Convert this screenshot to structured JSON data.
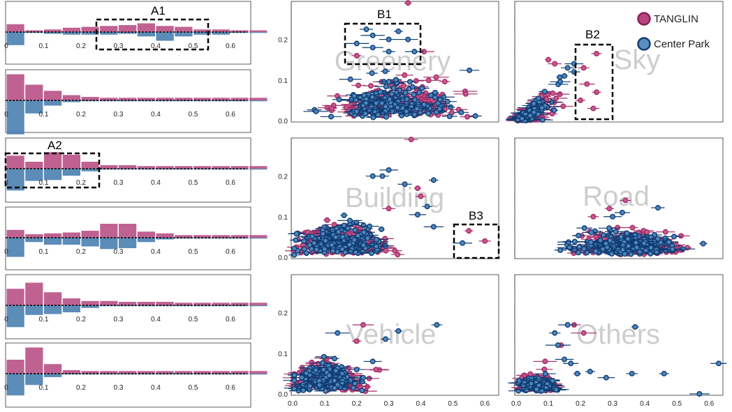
{
  "colors": {
    "tanglin": "#b5467e",
    "tanglin_stroke": "#a62b66",
    "center_park": "#4a7fb0",
    "center_park_stroke": "#0f3d73"
  },
  "legend": [
    {
      "name": "TANGLIN",
      "color": "#b5467e"
    },
    {
      "name": "Center Park",
      "color": "#4a7fb0"
    }
  ],
  "chart_data": [
    {
      "type": "bar",
      "panel": "histogram-1",
      "x_ticks": [
        "0",
        "0.1",
        "0.2",
        "0.3",
        "0.4",
        "0.5",
        "0.6"
      ],
      "xlim": [
        0,
        0.65
      ],
      "bin_width": 0.05,
      "series": [
        {
          "name": "TANGLIN",
          "values": [
            0.9,
            0.2,
            0.3,
            0.5,
            0.6,
            0.7,
            0.8,
            1.0,
            0.7,
            0.6,
            0.3,
            0.3,
            0.2,
            0.2
          ]
        },
        {
          "name": "Center Park",
          "values": [
            1.5,
            0.1,
            0.2,
            0.3,
            0.3,
            0.3,
            0.2,
            0.5,
            1.0,
            0.5,
            0.3,
            0.3,
            0.1,
            0.1
          ]
        }
      ],
      "annotation": "A1"
    },
    {
      "type": "bar",
      "panel": "histogram-2",
      "x_ticks": [
        "0",
        "0.1",
        "0.2",
        "0.3",
        "0.4",
        "0.5",
        "0.6"
      ],
      "xlim": [
        0,
        0.65
      ],
      "bin_width": 0.05,
      "series": [
        {
          "name": "TANGLIN",
          "values": [
            3.0,
            1.8,
            1.1,
            0.6,
            0.4,
            0.3,
            0.3,
            0.3,
            0.3,
            0.3,
            0.3,
            0.3,
            0.3,
            0.3
          ]
        },
        {
          "name": "Center Park",
          "values": [
            3.9,
            1.5,
            0.6,
            0.2,
            0.1,
            0.1,
            0.1,
            0.1,
            0.1,
            0.1,
            0.1,
            0.1,
            0.1,
            0.1
          ]
        }
      ]
    },
    {
      "type": "bar",
      "panel": "histogram-3",
      "x_ticks": [
        "0",
        "0.1",
        "0.2",
        "0.3",
        "0.4",
        "0.5",
        "0.6"
      ],
      "xlim": [
        0,
        0.65
      ],
      "bin_width": 0.05,
      "series": [
        {
          "name": "TANGLIN",
          "values": [
            1.5,
            0.8,
            1.9,
            1.6,
            0.8,
            0.4,
            0.4,
            0.3,
            0.3,
            0.3,
            0.3,
            0.3,
            0.3,
            0.3
          ]
        },
        {
          "name": "Center Park",
          "values": [
            2.5,
            1.4,
            1.3,
            0.8,
            0.3,
            0.1,
            0.1,
            0.1,
            0.1,
            0.1,
            0.1,
            0.1,
            0.1,
            0.1
          ]
        }
      ],
      "annotation": "A2"
    },
    {
      "type": "bar",
      "panel": "histogram-4",
      "x_ticks": [
        "0",
        "0.1",
        "0.2",
        "0.3",
        "0.4",
        "0.5",
        "0.6"
      ],
      "xlim": [
        0,
        0.65
      ],
      "bin_width": 0.05,
      "series": [
        {
          "name": "TANGLIN",
          "values": [
            0.9,
            0.4,
            0.5,
            0.6,
            0.8,
            1.6,
            1.6,
            0.7,
            0.5,
            0.3,
            0.3,
            0.3,
            0.3,
            0.3
          ]
        },
        {
          "name": "Center Park",
          "values": [
            2.2,
            0.5,
            0.8,
            0.8,
            1.0,
            1.3,
            1.2,
            0.5,
            0.2,
            0.1,
            0.1,
            0.1,
            0.1,
            0.1
          ]
        }
      ]
    },
    {
      "type": "bar",
      "panel": "histogram-5",
      "x_ticks": [
        "0",
        "0.1",
        "0.2",
        "0.3",
        "0.4",
        "0.5",
        "0.6"
      ],
      "xlim": [
        0,
        0.65
      ],
      "bin_width": 0.05,
      "series": [
        {
          "name": "TANGLIN",
          "values": [
            1.9,
            2.6,
            1.5,
            0.8,
            0.5,
            0.5,
            0.4,
            0.4,
            0.4,
            0.3,
            0.3,
            0.3,
            0.3,
            0.3
          ]
        },
        {
          "name": "Center Park",
          "values": [
            2.5,
            1.1,
            1.0,
            0.8,
            0.3,
            0.1,
            0.1,
            0.1,
            0.1,
            0.1,
            0.1,
            0.1,
            0.1,
            0.1
          ]
        }
      ]
    },
    {
      "type": "bar",
      "panel": "histogram-6",
      "x_ticks": [
        "0",
        "0.1",
        "0.2",
        "0.3",
        "0.4",
        "0.5",
        "0.6"
      ],
      "xlim": [
        0,
        0.65
      ],
      "bin_width": 0.05,
      "series": [
        {
          "name": "TANGLIN",
          "values": [
            1.6,
            3.0,
            1.1,
            0.4,
            0.3,
            0.3,
            0.3,
            0.3,
            0.3,
            0.3,
            0.3,
            0.3,
            0.3,
            0.3
          ]
        },
        {
          "name": "Center Park",
          "values": [
            2.5,
            1.3,
            0.4,
            0.1,
            0.1,
            0.1,
            0.1,
            0.1,
            0.1,
            0.1,
            0.1,
            0.1,
            0.1,
            0.1
          ]
        }
      ]
    },
    {
      "type": "scatter",
      "panel": "scatter-greenery",
      "label": "Greenery",
      "x_ticks": [],
      "y_ticks": [
        "0.0",
        "0.1",
        "0.2"
      ],
      "xlim": [
        0,
        0.63
      ],
      "ylim": [
        0,
        0.28
      ],
      "seed": 11,
      "count_tanglin": 180,
      "count_centerpark": 160,
      "cloud": {
        "cx": 0.33,
        "cy": 0.07,
        "sx": 0.09,
        "sy": 0.035
      },
      "extra_centerpark": [
        [
          0.23,
          0.225
        ],
        [
          0.33,
          0.22
        ],
        [
          0.25,
          0.21
        ],
        [
          0.3,
          0.2
        ],
        [
          0.36,
          0.2
        ],
        [
          0.2,
          0.19
        ],
        [
          0.25,
          0.18
        ],
        [
          0.3,
          0.17
        ],
        [
          0.38,
          0.17
        ]
      ],
      "extra_tanglin": [
        [
          0.36,
          0.29
        ],
        [
          0.41,
          0.17
        ],
        [
          0.2,
          0.16
        ]
      ],
      "annotation": "B1"
    },
    {
      "type": "scatter",
      "panel": "scatter-sky",
      "label": "Sky",
      "x_ticks": [],
      "y_ticks": [],
      "xlim": [
        0,
        0.63
      ],
      "ylim": [
        0,
        0.28
      ],
      "seed": 23,
      "count_tanglin": 110,
      "count_centerpark": 90,
      "cloud": {
        "cx": 0.09,
        "cy": 0.045,
        "sx": 0.045,
        "sy": 0.03
      },
      "wedge": true,
      "extra_centerpark": [
        [
          0.16,
          0.13
        ],
        [
          0.18,
          0.12
        ],
        [
          0.15,
          0.11
        ],
        [
          0.18,
          0.14
        ]
      ],
      "extra_tanglin": [
        [
          0.25,
          0.165
        ],
        [
          0.21,
          0.13
        ],
        [
          0.22,
          0.09
        ],
        [
          0.25,
          0.07
        ],
        [
          0.2,
          0.05
        ],
        [
          0.24,
          0.03
        ],
        [
          0.1,
          0.15
        ],
        [
          0.12,
          0.14
        ]
      ],
      "annotation": "B2"
    },
    {
      "type": "scatter",
      "panel": "scatter-building",
      "label": "Building",
      "x_ticks": [],
      "y_ticks": [
        "0.0",
        "0.1",
        "0.2"
      ],
      "xlim": [
        0,
        0.63
      ],
      "ylim": [
        0,
        0.28
      ],
      "seed": 37,
      "count_tanglin": 170,
      "count_centerpark": 170,
      "cloud": {
        "cx": 0.16,
        "cy": 0.05,
        "sx": 0.07,
        "sy": 0.03
      },
      "extra_centerpark": [
        [
          0.3,
          0.215
        ],
        [
          0.28,
          0.2
        ],
        [
          0.44,
          0.19
        ],
        [
          0.35,
          0.18
        ],
        [
          0.25,
          0.2
        ],
        [
          0.42,
          0.125
        ],
        [
          0.39,
          0.105
        ],
        [
          0.44,
          0.075
        ],
        [
          0.53,
          0.035
        ]
      ],
      "extra_tanglin": [
        [
          0.37,
          0.29
        ],
        [
          0.39,
          0.17
        ],
        [
          0.4,
          0.15
        ],
        [
          0.55,
          0.065
        ],
        [
          0.6,
          0.04
        ],
        [
          0.3,
          0.12
        ]
      ],
      "annotation": "B3"
    },
    {
      "type": "scatter",
      "panel": "scatter-road",
      "label": "Road",
      "x_ticks": [],
      "y_ticks": [],
      "xlim": [
        0,
        0.63
      ],
      "ylim": [
        0,
        0.28
      ],
      "seed": 51,
      "count_tanglin": 170,
      "count_centerpark": 190,
      "cloud": {
        "cx": 0.34,
        "cy": 0.045,
        "sx": 0.08,
        "sy": 0.025
      },
      "extra_centerpark": [
        [
          0.33,
          0.11
        ],
        [
          0.3,
          0.1
        ]
      ],
      "extra_tanglin": [
        [
          0.34,
          0.14
        ],
        [
          0.29,
          0.12
        ],
        [
          0.24,
          0.1
        ]
      ]
    },
    {
      "type": "scatter",
      "panel": "scatter-vehicle",
      "label": "Vehicle",
      "x_ticks": [
        "0.0",
        "0.1",
        "0.2",
        "0.3",
        "0.4",
        "0.5",
        "0.6"
      ],
      "y_ticks": [
        "0.0",
        "0.1",
        "0.2"
      ],
      "xlim": [
        0,
        0.63
      ],
      "ylim": [
        0,
        0.28
      ],
      "seed": 67,
      "count_tanglin": 150,
      "count_centerpark": 150,
      "cloud": {
        "cx": 0.1,
        "cy": 0.04,
        "sx": 0.05,
        "sy": 0.028
      },
      "extra_centerpark": [
        [
          0.45,
          0.17
        ],
        [
          0.33,
          0.155
        ],
        [
          0.29,
          0.135
        ],
        [
          0.14,
          0.15
        ],
        [
          0.25,
          0.08
        ],
        [
          0.2,
          0.06
        ],
        [
          0.22,
          0.04
        ]
      ],
      "extra_tanglin": [
        [
          0.22,
          0.17
        ],
        [
          0.26,
          0.06
        ],
        [
          0.2,
          0.13
        ]
      ]
    },
    {
      "type": "scatter",
      "panel": "scatter-others",
      "label": "Others",
      "x_ticks": [
        "0.0",
        "0.1",
        "0.2",
        "0.3",
        "0.4",
        "0.5",
        "0.6"
      ],
      "y_ticks": [],
      "xlim": [
        0,
        0.63
      ],
      "ylim": [
        0,
        0.28
      ],
      "seed": 79,
      "count_tanglin": 80,
      "count_centerpark": 90,
      "cloud": {
        "cx": 0.07,
        "cy": 0.025,
        "sx": 0.03,
        "sy": 0.017
      },
      "extra_centerpark": [
        [
          0.37,
          0.165
        ],
        [
          0.16,
          0.17
        ],
        [
          0.12,
          0.15
        ],
        [
          0.13,
          0.12
        ],
        [
          0.17,
          0.075
        ],
        [
          0.19,
          0.05
        ],
        [
          0.23,
          0.055
        ],
        [
          0.28,
          0.04
        ],
        [
          0.36,
          0.05
        ],
        [
          0.46,
          0.05
        ],
        [
          0.57,
          0.0
        ],
        [
          0.63,
          0.075
        ],
        [
          0.15,
          0.085
        ]
      ],
      "extra_tanglin": [
        [
          0.18,
          0.17
        ],
        [
          0.21,
          0.15
        ],
        [
          0.09,
          0.08
        ],
        [
          0.14,
          0.12
        ]
      ]
    }
  ]
}
